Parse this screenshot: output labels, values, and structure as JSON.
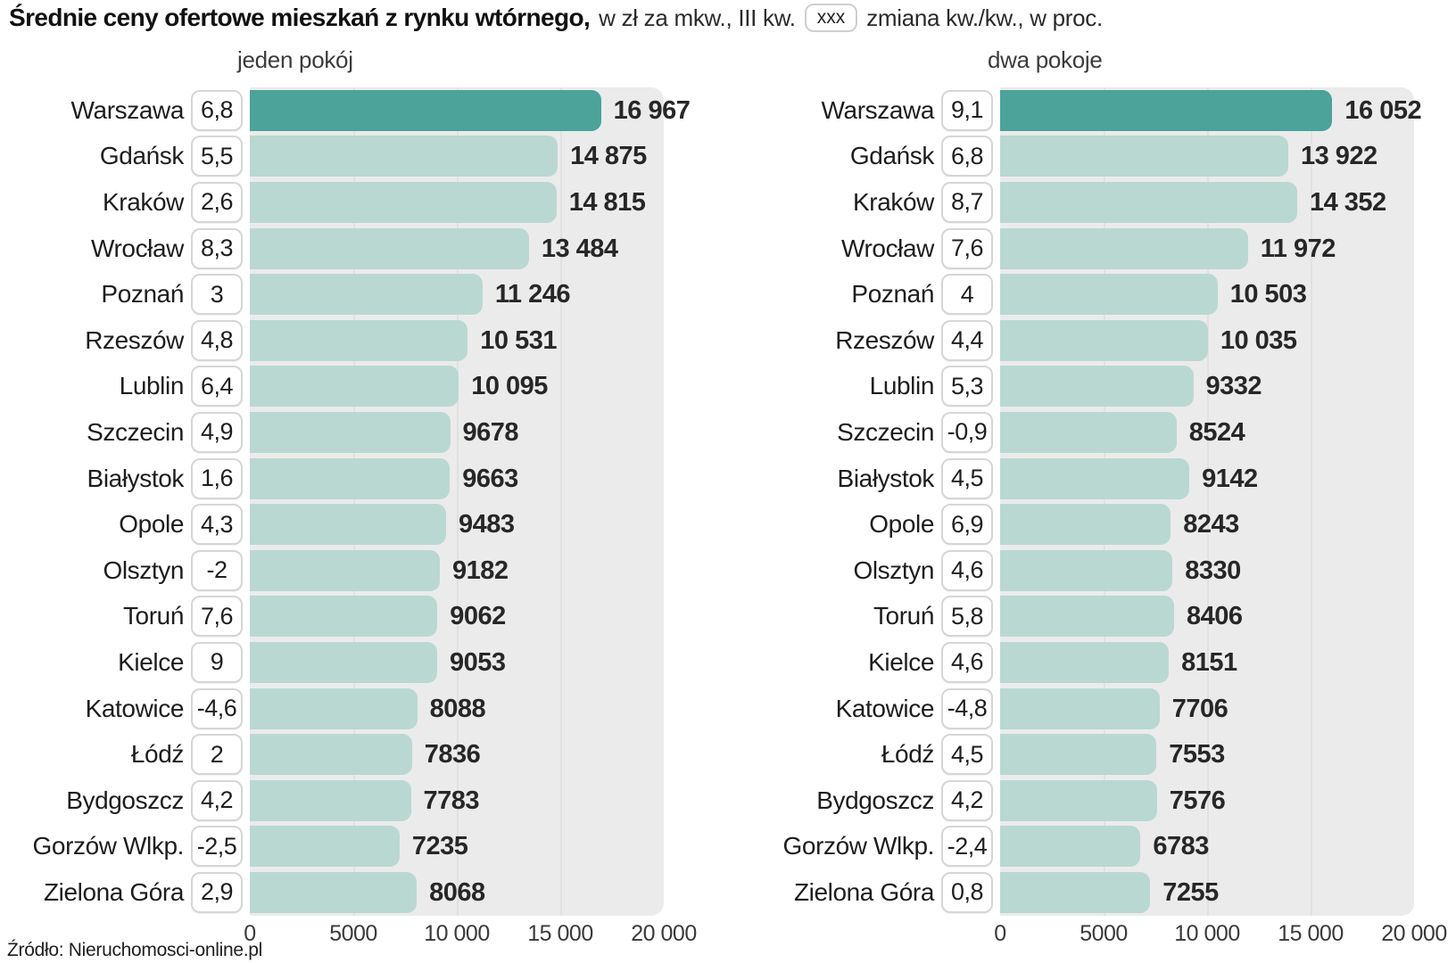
{
  "header": {
    "title_bold": "Średnie ceny ofertowe mieszkań z rynku wtórnego,",
    "title_mid": "w zł za mkw., III kw.",
    "badge_label": "xxx",
    "title_suffix": "zmiana kw./kw., w proc."
  },
  "source": "Źródło: Nieruchomosci-online.pl",
  "colors": {
    "bar_highlight": "#4ba39a",
    "bar": "#bad8d2",
    "plot_bg": "#ebebeb",
    "gridline": "#e1e1e1"
  },
  "chart_data": [
    {
      "type": "bar",
      "orientation": "horizontal",
      "title": "jeden pokój",
      "unit": "zł za mkw.",
      "xlim": [
        0,
        20000
      ],
      "x_ticks": [
        "0",
        "5000",
        "10 000",
        "15 000",
        "20 000"
      ],
      "highlight_index": 0,
      "rows": [
        {
          "city": "Warszawa",
          "change": "6,8",
          "value": 16967,
          "value_label": "16 967"
        },
        {
          "city": "Gdańsk",
          "change": "5,5",
          "value": 14875,
          "value_label": "14 875"
        },
        {
          "city": "Kraków",
          "change": "2,6",
          "value": 14815,
          "value_label": "14 815"
        },
        {
          "city": "Wrocław",
          "change": "8,3",
          "value": 13484,
          "value_label": "13 484"
        },
        {
          "city": "Poznań",
          "change": "3",
          "value": 11246,
          "value_label": "11 246"
        },
        {
          "city": "Rzeszów",
          "change": "4,8",
          "value": 10531,
          "value_label": "10 531"
        },
        {
          "city": "Lublin",
          "change": "6,4",
          "value": 10095,
          "value_label": "10 095"
        },
        {
          "city": "Szczecin",
          "change": "4,9",
          "value": 9678,
          "value_label": "9678"
        },
        {
          "city": "Białystok",
          "change": "1,6",
          "value": 9663,
          "value_label": "9663"
        },
        {
          "city": "Opole",
          "change": "4,3",
          "value": 9483,
          "value_label": "9483"
        },
        {
          "city": "Olsztyn",
          "change": "-2",
          "value": 9182,
          "value_label": "9182"
        },
        {
          "city": "Toruń",
          "change": "7,6",
          "value": 9062,
          "value_label": "9062"
        },
        {
          "city": "Kielce",
          "change": "9",
          "value": 9053,
          "value_label": "9053"
        },
        {
          "city": "Katowice",
          "change": "-4,6",
          "value": 8088,
          "value_label": "8088"
        },
        {
          "city": "Łódź",
          "change": "2",
          "value": 7836,
          "value_label": "7836"
        },
        {
          "city": "Bydgoszcz",
          "change": "4,2",
          "value": 7783,
          "value_label": "7783"
        },
        {
          "city": "Gorzów Wlkp.",
          "change": "-2,5",
          "value": 7235,
          "value_label": "7235"
        },
        {
          "city": "Zielona Góra",
          "change": "2,9",
          "value": 8068,
          "value_label": "8068"
        }
      ]
    },
    {
      "type": "bar",
      "orientation": "horizontal",
      "title": "dwa pokoje",
      "unit": "zł za mkw.",
      "xlim": [
        0,
        20000
      ],
      "x_ticks": [
        "0",
        "5000",
        "10 000",
        "15 000",
        "20 000"
      ],
      "highlight_index": 0,
      "rows": [
        {
          "city": "Warszawa",
          "change": "9,1",
          "value": 16052,
          "value_label": "16 052"
        },
        {
          "city": "Gdańsk",
          "change": "6,8",
          "value": 13922,
          "value_label": "13 922"
        },
        {
          "city": "Kraków",
          "change": "8,7",
          "value": 14352,
          "value_label": "14 352"
        },
        {
          "city": "Wrocław",
          "change": "7,6",
          "value": 11972,
          "value_label": "11 972"
        },
        {
          "city": "Poznań",
          "change": "4",
          "value": 10503,
          "value_label": "10 503"
        },
        {
          "city": "Rzeszów",
          "change": "4,4",
          "value": 10035,
          "value_label": "10 035"
        },
        {
          "city": "Lublin",
          "change": "5,3",
          "value": 9332,
          "value_label": "9332"
        },
        {
          "city": "Szczecin",
          "change": "-0,9",
          "value": 8524,
          "value_label": "8524"
        },
        {
          "city": "Białystok",
          "change": "4,5",
          "value": 9142,
          "value_label": "9142"
        },
        {
          "city": "Opole",
          "change": "6,9",
          "value": 8243,
          "value_label": "8243"
        },
        {
          "city": "Olsztyn",
          "change": "4,6",
          "value": 8330,
          "value_label": "8330"
        },
        {
          "city": "Toruń",
          "change": "5,8",
          "value": 8406,
          "value_label": "8406"
        },
        {
          "city": "Kielce",
          "change": "4,6",
          "value": 8151,
          "value_label": "8151"
        },
        {
          "city": "Katowice",
          "change": "-4,8",
          "value": 7706,
          "value_label": "7706"
        },
        {
          "city": "Łódź",
          "change": "4,5",
          "value": 7553,
          "value_label": "7553"
        },
        {
          "city": "Bydgoszcz",
          "change": "4,2",
          "value": 7576,
          "value_label": "7576"
        },
        {
          "city": "Gorzów Wlkp.",
          "change": "-2,4",
          "value": 6783,
          "value_label": "6783"
        },
        {
          "city": "Zielona Góra",
          "change": "0,8",
          "value": 7255,
          "value_label": "7255"
        }
      ]
    }
  ]
}
